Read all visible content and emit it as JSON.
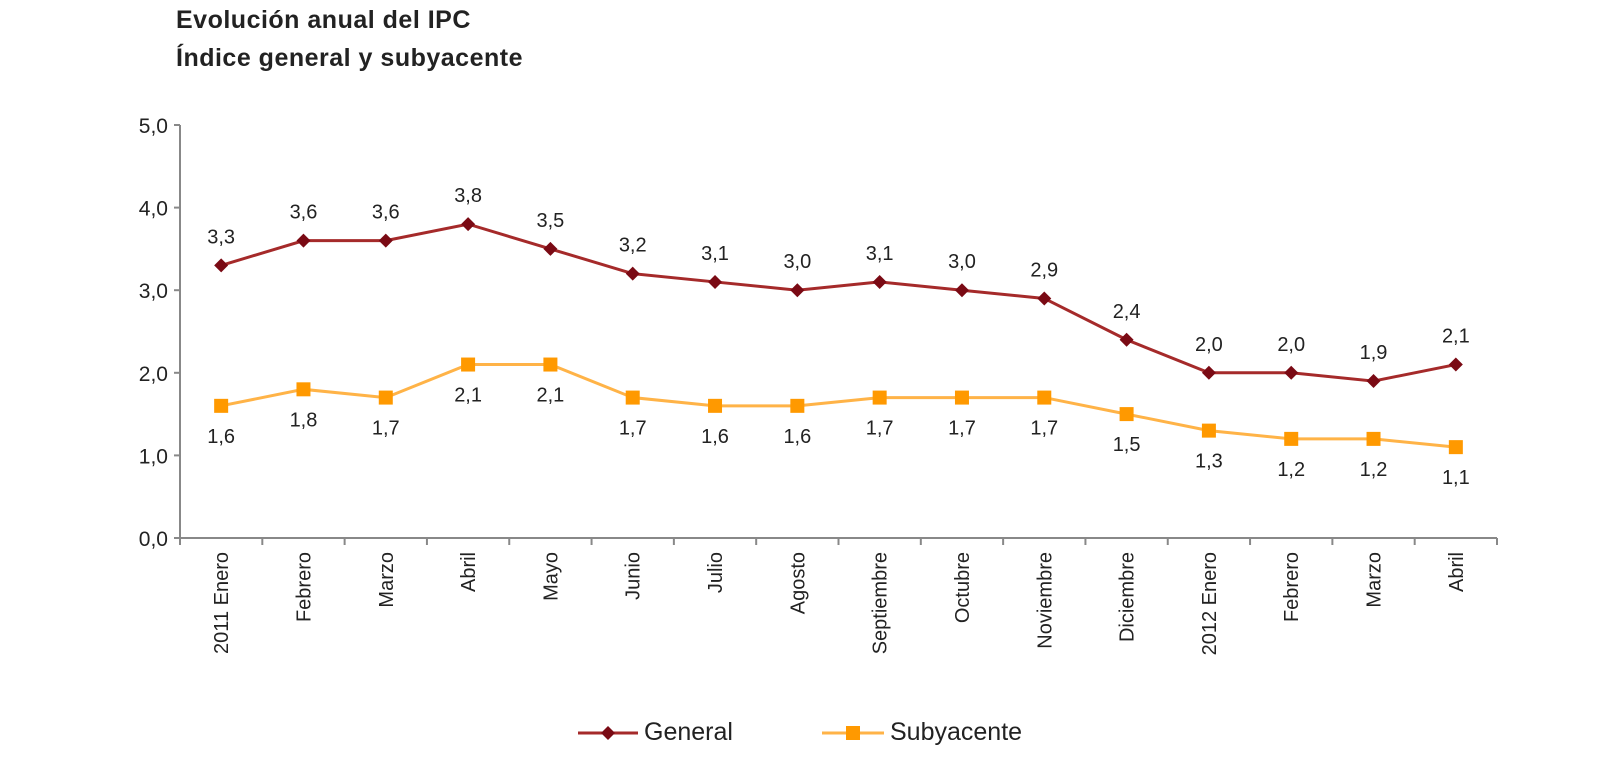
{
  "chart_data": {
    "type": "line",
    "title": "Evolución anual del IPC",
    "subtitle": "Índice general y subyacente",
    "xlabel": "",
    "ylabel": "",
    "categories": [
      "2011 Enero",
      "Febrero",
      "Marzo",
      "Abril",
      "Mayo",
      "Junio",
      "Julio",
      "Agosto",
      "Septiembre",
      "Octubre",
      "Noviembre",
      "Diciembre",
      "2012 Enero",
      "Febrero",
      "Marzo",
      "Abril"
    ],
    "yticks": [
      "0,0",
      "1,0",
      "2,0",
      "3,0",
      "4,0",
      "5,0"
    ],
    "ylim": [
      0,
      5
    ],
    "grid": false,
    "legend_position": "bottom",
    "series": [
      {
        "name": "General",
        "color": "#a52a2a",
        "marker_color": "#7a0a14",
        "marker": "diamond",
        "values": [
          3.3,
          3.6,
          3.6,
          3.8,
          3.5,
          3.2,
          3.1,
          3.0,
          3.1,
          3.0,
          2.9,
          2.4,
          2.0,
          2.0,
          1.9,
          2.1
        ],
        "labels": [
          "3,3",
          "3,6",
          "3,6",
          "3,8",
          "3,5",
          "3,2",
          "3,1",
          "3,0",
          "3,1",
          "3,0",
          "2,9",
          "2,4",
          "2,0",
          "2,0",
          "1,9",
          "2,1"
        ]
      },
      {
        "name": "Subyacente",
        "color": "#ffb347",
        "marker_color": "#ff9900",
        "marker": "square",
        "values": [
          1.6,
          1.8,
          1.7,
          2.1,
          2.1,
          1.7,
          1.6,
          1.6,
          1.7,
          1.7,
          1.7,
          1.5,
          1.3,
          1.2,
          1.2,
          1.1
        ],
        "labels": [
          "1,6",
          "1,8",
          "1,7",
          "2,1",
          "2,1",
          "1,7",
          "1,6",
          "1,6",
          "1,7",
          "1,7",
          "1,7",
          "1,5",
          "1,3",
          "1,2",
          "1,2",
          "1,1"
        ]
      }
    ]
  }
}
